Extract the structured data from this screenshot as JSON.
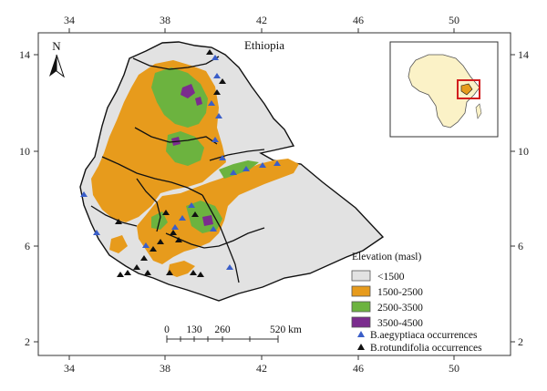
{
  "map": {
    "title": "Ethiopia",
    "north_label": "N",
    "x_ticks": [
      "34",
      "38",
      "42",
      "46",
      "50"
    ],
    "y_ticks": [
      "14",
      "10",
      "6",
      "2"
    ]
  },
  "legend": {
    "title": "Elevation (masl)",
    "classes": [
      {
        "label": "<1500",
        "color": "#e2e2e2"
      },
      {
        "label": "1500-2500",
        "color": "#e79b1c"
      },
      {
        "label": "2500-3500",
        "color": "#6cb33f"
      },
      {
        "label": "3500-4500",
        "color": "#7b2c8e"
      }
    ],
    "occurrences": [
      {
        "label": "B.aegyptiaca occurrences",
        "color": "#3a5ec8"
      },
      {
        "label": "B.rotundifolia occurrences",
        "color": "#111111"
      }
    ]
  },
  "scale_bar": {
    "labels": [
      "0",
      "130",
      "260",
      "520 km"
    ]
  }
}
